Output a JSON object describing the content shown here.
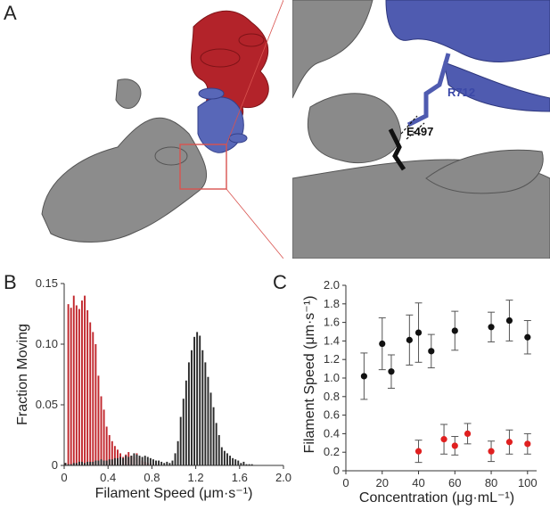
{
  "panels": {
    "a": {
      "letter": "A",
      "residue1": "R712",
      "residue2": "E497"
    },
    "b": {
      "letter": "B"
    },
    "c": {
      "letter": "C"
    }
  },
  "colors": {
    "red": "#c1272d",
    "black": "#2a2a2a",
    "blue": "#4f5bb0",
    "gray": "#7a7a7a",
    "frame": "#d9534f"
  },
  "chart_data": [
    {
      "type": "bar",
      "panel": "B",
      "xlabel": "Filament Speed (μm·s⁻¹)",
      "ylabel": "Fraction Moving",
      "xlim": [
        0,
        2.0
      ],
      "ylim": [
        0,
        0.15
      ],
      "xticks": [
        "0",
        "0.4",
        "0.8",
        "1.2",
        "1.6",
        "2.0"
      ],
      "yticks": [
        "0",
        "0.05",
        "0.10",
        "0.15"
      ],
      "bin_width": 0.025,
      "series": [
        {
          "color": "#c1272d",
          "x": [
            0.0125,
            0.0375,
            0.0625,
            0.0875,
            0.1125,
            0.1375,
            0.1625,
            0.1875,
            0.2125,
            0.2375,
            0.2625,
            0.2875,
            0.3125,
            0.3375,
            0.3625,
            0.3875,
            0.4125,
            0.4375,
            0.4625,
            0.4875,
            0.5125,
            0.5375,
            0.5625,
            0.5875,
            0.6125,
            0.6375,
            0.6625,
            0.6875,
            0.7125,
            0.7375,
            0.7625,
            0.7875,
            0.8125,
            0.8375,
            0.8625
          ],
          "values": [
            0.002,
            0.133,
            0.13,
            0.14,
            0.132,
            0.129,
            0.136,
            0.14,
            0.128,
            0.118,
            0.11,
            0.1,
            0.074,
            0.057,
            0.046,
            0.032,
            0.025,
            0.02,
            0.016,
            0.013,
            0.01,
            0.007,
            0.009,
            0.011,
            0.008,
            0.007,
            0.01,
            0.006,
            0.004,
            0.003,
            0.002,
            0.002,
            0.001,
            0.001,
            0.001
          ]
        },
        {
          "color": "#2a2a2a",
          "x": [
            0.0125,
            0.0375,
            0.0625,
            0.0875,
            0.1125,
            0.1375,
            0.1625,
            0.1875,
            0.2125,
            0.2375,
            0.2625,
            0.2875,
            0.3125,
            0.3375,
            0.3625,
            0.3875,
            0.4125,
            0.4375,
            0.4625,
            0.4875,
            0.5125,
            0.5375,
            0.5625,
            0.5875,
            0.6125,
            0.6375,
            0.6625,
            0.6875,
            0.7125,
            0.7375,
            0.7625,
            0.7875,
            0.8125,
            0.8375,
            0.8625,
            0.8875,
            0.9125,
            0.9375,
            0.9625,
            0.9875,
            1.0125,
            1.0375,
            1.0625,
            1.0875,
            1.1125,
            1.1375,
            1.1625,
            1.1875,
            1.2125,
            1.2375,
            1.2625,
            1.2875,
            1.3125,
            1.3375,
            1.3625,
            1.3875,
            1.4125,
            1.4375,
            1.4625,
            1.4875,
            1.5125,
            1.5375,
            1.5625,
            1.5875,
            1.6125,
            1.6375,
            1.6625,
            1.6875,
            1.7125
          ],
          "values": [
            0.002,
            0.001,
            0.001,
            0.002,
            0.002,
            0.003,
            0.003,
            0.002,
            0.003,
            0.003,
            0.003,
            0.004,
            0.004,
            0.005,
            0.004,
            0.004,
            0.005,
            0.005,
            0.006,
            0.006,
            0.007,
            0.006,
            0.008,
            0.007,
            0.008,
            0.01,
            0.009,
            0.008,
            0.007,
            0.008,
            0.007,
            0.006,
            0.005,
            0.004,
            0.004,
            0.003,
            0.002,
            0.003,
            0.002,
            0.004,
            0.01,
            0.02,
            0.04,
            0.055,
            0.07,
            0.085,
            0.095,
            0.106,
            0.11,
            0.107,
            0.095,
            0.085,
            0.073,
            0.06,
            0.048,
            0.035,
            0.025,
            0.015,
            0.012,
            0.01,
            0.008,
            0.006,
            0.005,
            0.004,
            0.002,
            0.003,
            0.001,
            0.001,
            0.001
          ]
        }
      ]
    },
    {
      "type": "scatter",
      "panel": "C",
      "xlabel": "Concentration (μg·mL⁻¹)",
      "ylabel": "Filament Speed (μm·s⁻¹)",
      "xlim": [
        0,
        105
      ],
      "ylim": [
        0,
        2.0
      ],
      "xticks": [
        "0",
        "20",
        "40",
        "60",
        "80",
        "100"
      ],
      "yticks": [
        "0",
        "0.2",
        "0.4",
        "0.6",
        "0.8",
        "1.0",
        "1.2",
        "1.4",
        "1.6",
        "1.8",
        "2.0"
      ],
      "series": [
        {
          "color": "#111111",
          "x": [
            10,
            20,
            25,
            35,
            40,
            47,
            60,
            80,
            90,
            100
          ],
          "y": [
            1.02,
            1.37,
            1.07,
            1.41,
            1.49,
            1.29,
            1.51,
            1.55,
            1.62,
            1.44
          ],
          "err": [
            0.25,
            0.28,
            0.18,
            0.27,
            0.32,
            0.18,
            0.21,
            0.16,
            0.22,
            0.18
          ]
        },
        {
          "color": "#e02020",
          "x": [
            40,
            54,
            60,
            67,
            80,
            90,
            100
          ],
          "y": [
            0.21,
            0.34,
            0.27,
            0.4,
            0.21,
            0.31,
            0.29
          ],
          "err": [
            0.12,
            0.16,
            0.1,
            0.11,
            0.11,
            0.13,
            0.11
          ]
        }
      ]
    }
  ]
}
